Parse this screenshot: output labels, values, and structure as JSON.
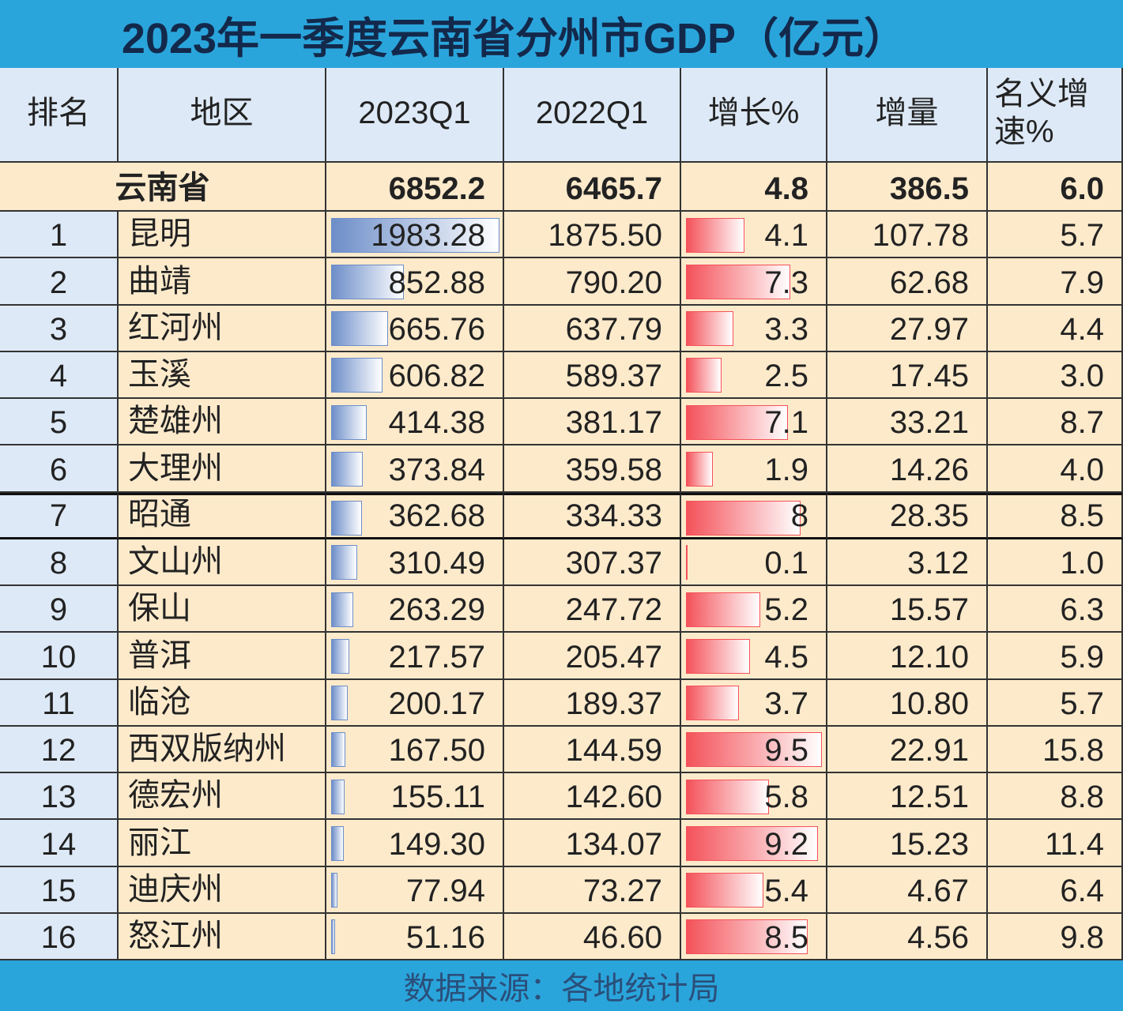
{
  "title": "2023年一季度云南省分州市GDP（亿元）",
  "header": [
    "排名",
    "地区",
    "2023Q1",
    "2022Q1",
    "增长%",
    "增量",
    "名义增速%"
  ],
  "total": [
    "云南省",
    "6852.2",
    "6465.7",
    "4.8",
    "386.5",
    "6.0"
  ],
  "rows": [
    [
      "1",
      "昆明",
      "1983.28",
      "1875.50",
      "4.1",
      "107.78",
      "5.7"
    ],
    [
      "2",
      "曲靖",
      "852.88",
      "790.20",
      "7.3",
      "62.68",
      "7.9"
    ],
    [
      "3",
      "红河州",
      "665.76",
      "637.79",
      "3.3",
      "27.97",
      "4.4"
    ],
    [
      "4",
      "玉溪",
      "606.82",
      "589.37",
      "2.5",
      "17.45",
      "3.0"
    ],
    [
      "5",
      "楚雄州",
      "414.38",
      "381.17",
      "7.1",
      "33.21",
      "8.7"
    ],
    [
      "6",
      "大理州",
      "373.84",
      "359.58",
      "1.9",
      "14.26",
      "4.0"
    ],
    [
      "7",
      "昭通",
      "362.68",
      "334.33",
      "8",
      "28.35",
      "8.5"
    ],
    [
      "8",
      "文山州",
      "310.49",
      "307.37",
      "0.1",
      "3.12",
      "1.0"
    ],
    [
      "9",
      "保山",
      "263.29",
      "247.72",
      "5.2",
      "15.57",
      "6.3"
    ],
    [
      "10",
      "普洱",
      "217.57",
      "205.47",
      "4.5",
      "12.10",
      "5.9"
    ],
    [
      "11",
      "临沧",
      "200.17",
      "189.37",
      "3.7",
      "10.80",
      "5.7"
    ],
    [
      "12",
      "西双版纳州",
      "167.50",
      "144.59",
      "9.5",
      "22.91",
      "15.8"
    ],
    [
      "13",
      "德宏州",
      "155.11",
      "142.60",
      "5.8",
      "12.51",
      "8.8"
    ],
    [
      "14",
      "丽江",
      "149.30",
      "134.07",
      "9.2",
      "15.23",
      "11.4"
    ],
    [
      "15",
      "迪庆州",
      "77.94",
      "73.27",
      "5.4",
      "4.67",
      "6.4"
    ],
    [
      "16",
      "怒江州",
      "51.16",
      "46.60",
      "8.5",
      "4.56",
      "9.8"
    ]
  ],
  "footer": "数据来源：各地统计局"
}
